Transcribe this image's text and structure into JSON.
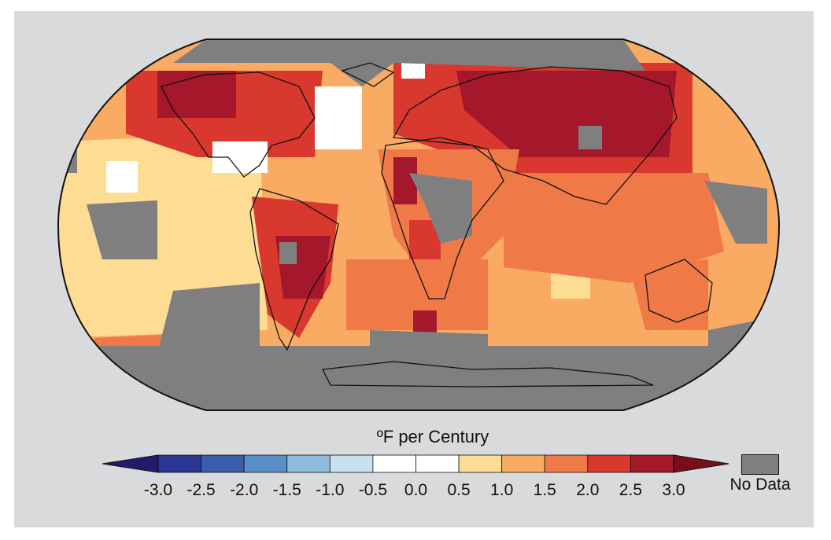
{
  "legend": {
    "title": "ºF per Century",
    "ticks": [
      "-3.0",
      "-2.5",
      "-2.0",
      "-1.5",
      "-1.0",
      "-0.5",
      "0.0",
      "0.5",
      "1.0",
      "1.5",
      "2.0",
      "2.5",
      "3.0"
    ],
    "bins": [
      {
        "from": -3.0,
        "to": -2.5,
        "color": "#2a3594"
      },
      {
        "from": -2.5,
        "to": -2.0,
        "color": "#3b5dab"
      },
      {
        "from": -2.0,
        "to": -1.5,
        "color": "#5a8ec6"
      },
      {
        "from": -1.5,
        "to": -1.0,
        "color": "#8dbcdc"
      },
      {
        "from": -1.0,
        "to": -0.5,
        "color": "#c7e2ef"
      },
      {
        "from": -0.5,
        "to": 0.0,
        "color": "#ffffff"
      },
      {
        "from": 0.0,
        "to": 0.5,
        "color": "#ffffff"
      },
      {
        "from": 0.5,
        "to": 1.0,
        "color": "#fddc94"
      },
      {
        "from": 1.0,
        "to": 1.5,
        "color": "#f9ab64"
      },
      {
        "from": 1.5,
        "to": 2.0,
        "color": "#ef7a48"
      },
      {
        "from": 2.0,
        "to": 2.5,
        "color": "#d8382e"
      },
      {
        "from": 2.5,
        "to": 3.0,
        "color": "#a5172a"
      }
    ],
    "low_arrow_color": "#231a6b",
    "high_arrow_color": "#7a0d1a",
    "no_data_label": "No Data",
    "no_data_color": "#7f7f7f"
  },
  "map": {
    "projection": "Robinson",
    "background_color": "#d9dadb",
    "ocean_base_color": "#f9ab64"
  }
}
